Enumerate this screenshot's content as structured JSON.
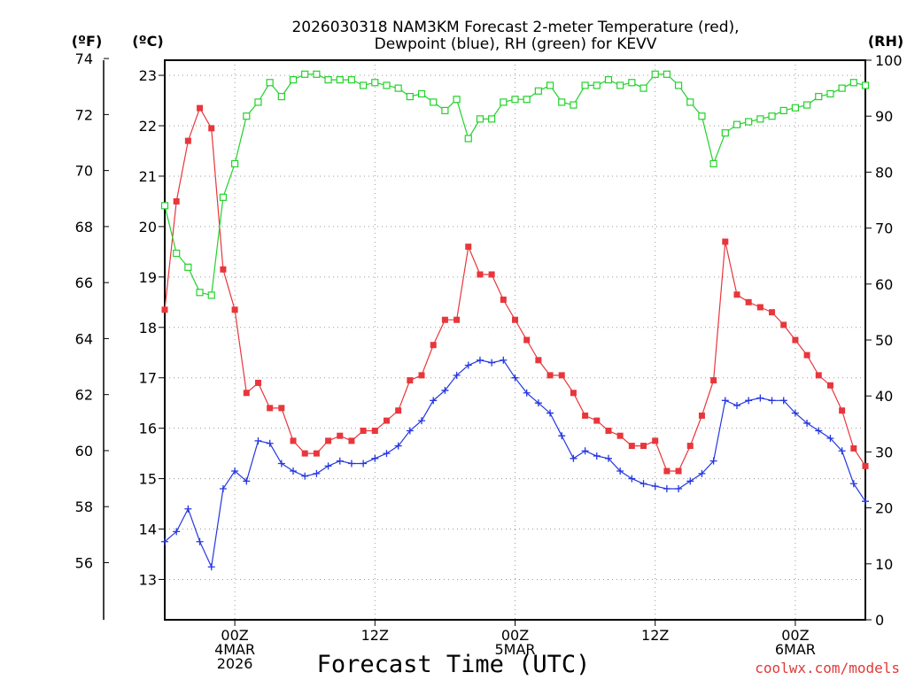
{
  "chart_data": {
    "type": "line",
    "title_lines": [
      "2026030318 NAM3KM Forecast 2-meter Temperature (red),",
      "Dewpoint (blue), RH (green) for KEVV"
    ],
    "xlabel": "Forecast Time (UTC)",
    "credit": "coolwx.com/models",
    "unit_labels": {
      "fahrenheit": "(ºF)",
      "celsius": "(ºC)",
      "rh": "(RH)"
    },
    "x_range_hours": [
      0,
      60
    ],
    "x_ticks": [
      {
        "x": 6,
        "lines": [
          "00Z",
          "4MAR",
          "2026"
        ]
      },
      {
        "x": 18,
        "lines": [
          "12Z"
        ]
      },
      {
        "x": 30,
        "lines": [
          "00Z",
          "5MAR"
        ]
      },
      {
        "x": 42,
        "lines": [
          "12Z"
        ]
      },
      {
        "x": 54,
        "lines": [
          "00Z",
          "6MAR"
        ]
      }
    ],
    "celsius_axis": {
      "ylim": [
        12.2,
        23.3
      ],
      "ticks": [
        13,
        14,
        15,
        16,
        17,
        18,
        19,
        20,
        21,
        22,
        23
      ]
    },
    "fahrenheit_axis": {
      "ylim": [
        54,
        74
      ],
      "ticks": [
        56,
        58,
        60,
        62,
        64,
        66,
        68,
        70,
        72,
        74
      ]
    },
    "rh_axis": {
      "ylim": [
        0,
        100
      ],
      "ticks": [
        0,
        10,
        20,
        30,
        40,
        50,
        60,
        70,
        80,
        90,
        100
      ]
    },
    "grid": true,
    "series": [
      {
        "name": "Temperature",
        "axis": "celsius",
        "color": "#e8363c",
        "marker": "filled-square",
        "x": [
          0,
          1,
          2,
          3,
          4,
          5,
          6,
          7,
          8,
          9,
          10,
          11,
          12,
          13,
          14,
          15,
          16,
          17,
          18,
          19,
          20,
          21,
          22,
          23,
          24,
          25,
          26,
          27,
          28,
          29,
          30,
          31,
          32,
          33,
          34,
          35,
          36,
          37,
          38,
          39,
          40,
          41,
          42,
          43,
          44,
          45,
          46,
          47,
          48,
          49,
          50,
          51,
          52,
          53,
          54,
          55,
          56,
          57,
          58,
          59,
          60
        ],
        "values": [
          18.35,
          20.5,
          21.7,
          22.35,
          21.95,
          19.15,
          18.35,
          16.7,
          16.9,
          16.4,
          16.4,
          15.75,
          15.5,
          15.5,
          15.75,
          15.85,
          15.75,
          15.95,
          15.95,
          16.15,
          16.35,
          16.95,
          17.05,
          17.65,
          18.15,
          18.15,
          19.6,
          19.05,
          19.05,
          18.55,
          18.15,
          17.75,
          17.35,
          17.05,
          17.05,
          16.7,
          16.25,
          16.15,
          15.95,
          15.85,
          15.65,
          15.65,
          15.75,
          15.15,
          15.15,
          15.65,
          16.25,
          16.95,
          19.7,
          18.65,
          18.5,
          18.4,
          18.3,
          18.05,
          17.75,
          17.45,
          17.05,
          16.85,
          16.35,
          15.6,
          15.25
        ]
      },
      {
        "name": "Dewpoint",
        "axis": "celsius",
        "color": "#2436e0",
        "marker": "plus",
        "x": [
          0,
          1,
          2,
          3,
          4,
          5,
          6,
          7,
          8,
          9,
          10,
          11,
          12,
          13,
          14,
          15,
          16,
          17,
          18,
          19,
          20,
          21,
          22,
          23,
          24,
          25,
          26,
          27,
          28,
          29,
          30,
          31,
          32,
          33,
          34,
          35,
          36,
          37,
          38,
          39,
          40,
          41,
          42,
          43,
          44,
          45,
          46,
          47,
          48,
          49,
          50,
          51,
          52,
          53,
          54,
          55,
          56,
          57,
          58,
          59,
          60
        ],
        "values": [
          13.75,
          13.95,
          14.4,
          13.75,
          13.25,
          14.8,
          15.15,
          14.95,
          15.75,
          15.7,
          15.3,
          15.15,
          15.05,
          15.1,
          15.25,
          15.35,
          15.3,
          15.3,
          15.4,
          15.5,
          15.65,
          15.95,
          16.15,
          16.55,
          16.75,
          17.05,
          17.25,
          17.35,
          17.3,
          17.35,
          17.0,
          16.7,
          16.5,
          16.3,
          15.85,
          15.4,
          15.55,
          15.45,
          15.4,
          15.15,
          15.0,
          14.9,
          14.85,
          14.8,
          14.8,
          14.95,
          15.1,
          15.35,
          16.55,
          16.45,
          16.55,
          16.6,
          16.55,
          16.55,
          16.3,
          16.1,
          15.95,
          15.8,
          15.55,
          14.9,
          14.55
        ]
      },
      {
        "name": "RH",
        "axis": "rh",
        "color": "#22d22a",
        "marker": "open-square",
        "x": [
          0,
          1,
          2,
          3,
          4,
          5,
          6,
          7,
          8,
          9,
          10,
          11,
          12,
          13,
          14,
          15,
          16,
          17,
          18,
          19,
          20,
          21,
          22,
          23,
          24,
          25,
          26,
          27,
          28,
          29,
          30,
          31,
          32,
          33,
          34,
          35,
          36,
          37,
          38,
          39,
          40,
          41,
          42,
          43,
          44,
          45,
          46,
          47,
          48,
          49,
          50,
          51,
          52,
          53,
          54,
          55,
          56,
          57,
          58,
          59,
          60
        ],
        "values": [
          74,
          65.5,
          63,
          58.5,
          58,
          75.5,
          81.5,
          90,
          92.5,
          96,
          93.5,
          96.5,
          97.5,
          97.5,
          96.5,
          96.5,
          96.5,
          95.5,
          96,
          95.5,
          95,
          93.5,
          94,
          92.5,
          91,
          93,
          86,
          89.5,
          89.5,
          92.5,
          93,
          93,
          94.5,
          95.5,
          92.5,
          92,
          95.5,
          95.5,
          96.5,
          95.5,
          96,
          95,
          97.5,
          97.5,
          95.5,
          92.5,
          90,
          81.5,
          87,
          88.5,
          89,
          89.5,
          90,
          91,
          91.5,
          92,
          93.5,
          94,
          95,
          96,
          95.5
        ]
      }
    ]
  }
}
